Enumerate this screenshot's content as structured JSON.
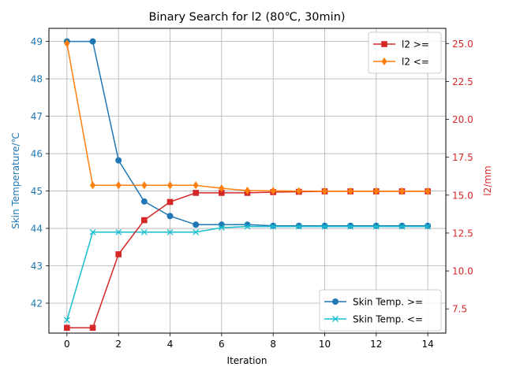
{
  "chart_data": {
    "type": "line",
    "title": "Binary Search for l2 (80℃, 30min)",
    "xlabel": "Iteration",
    "ylabel_left": "Skin Temperature/℃",
    "ylabel_right": "l2/mm",
    "x": [
      0,
      1,
      2,
      3,
      4,
      5,
      6,
      7,
      8,
      9,
      10,
      11,
      12,
      13,
      14
    ],
    "xlim": [
      -0.7,
      14.7
    ],
    "x_ticks": [
      "0",
      "2",
      "4",
      "6",
      "8",
      "10",
      "12",
      "14"
    ],
    "ylim_left": [
      41.2,
      49.35
    ],
    "y_ticks_left": [
      "42",
      "43",
      "44",
      "45",
      "46",
      "47",
      "48",
      "49"
    ],
    "ylim_right": [
      5.9,
      26.0
    ],
    "y_ticks_right": [
      "7.5",
      "10.0",
      "12.5",
      "15.0",
      "17.5",
      "20.0",
      "22.5",
      "25.0"
    ],
    "grid": true,
    "colors": {
      "left_axis": "#1f77b4",
      "right_axis": "#d62728"
    },
    "series_right": [
      {
        "name": "l2 >=",
        "color": "#d62728",
        "marker": "square",
        "values": [
          6.25,
          6.25,
          11.1,
          13.35,
          14.55,
          15.15,
          15.15,
          15.15,
          15.2,
          15.22,
          15.25,
          15.25,
          15.25,
          15.25,
          15.25
        ]
      },
      {
        "name": "l2 <=",
        "color": "#ff7f0e",
        "marker": "diamond",
        "values": [
          25.0,
          15.65,
          15.65,
          15.65,
          15.65,
          15.65,
          15.45,
          15.3,
          15.28,
          15.27,
          15.26,
          15.26,
          15.26,
          15.26,
          15.26
        ]
      }
    ],
    "series_left": [
      {
        "name": "Skin Temp. >=",
        "color": "#1f77b4",
        "marker": "circle",
        "values": [
          49.0,
          49.0,
          45.82,
          44.72,
          44.33,
          44.1,
          44.1,
          44.1,
          44.07,
          44.07,
          44.07,
          44.07,
          44.07,
          44.07,
          44.07
        ]
      },
      {
        "name": "Skin Temp. <=",
        "color": "#17becf",
        "marker": "x",
        "values": [
          41.55,
          43.9,
          43.9,
          43.9,
          43.9,
          43.9,
          44.02,
          44.05,
          44.05,
          44.05,
          44.05,
          44.05,
          44.05,
          44.05,
          44.05
        ]
      }
    ],
    "legend_right": "top-right",
    "legend_left": "bottom-right"
  }
}
